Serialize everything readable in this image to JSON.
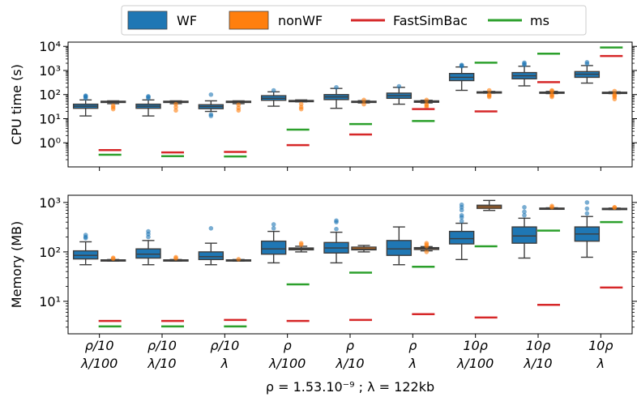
{
  "legend": [
    {
      "label": "WF",
      "kind": "box",
      "color": "#1f77b4"
    },
    {
      "label": "nonWF",
      "kind": "box",
      "color": "#ff7f0e"
    },
    {
      "label": "FastSimBac",
      "kind": "line",
      "color": "#d62728"
    },
    {
      "label": "ms",
      "kind": "line",
      "color": "#2ca02c"
    }
  ],
  "footnote": "ρ = 1.53.10⁻⁹ ;  λ = 122kb",
  "chart_data": [
    {
      "type": "box",
      "ylabel": "CPU time (s)",
      "yscale": "log",
      "ylim": [
        0.1,
        15000
      ],
      "yticks": [
        {
          "value": 1,
          "label": "10⁰"
        },
        {
          "value": 10,
          "label": "10¹"
        },
        {
          "value": 100,
          "label": "10²"
        },
        {
          "value": 1000,
          "label": "10³"
        },
        {
          "value": 10000,
          "label": "10⁴"
        }
      ],
      "categories": [
        [
          "ρ/10",
          "λ/100"
        ],
        [
          "ρ/10",
          "λ/10"
        ],
        [
          "ρ/10",
          "λ"
        ],
        [
          "ρ",
          "λ/100"
        ],
        [
          "ρ",
          "λ/10"
        ],
        [
          "ρ",
          "λ"
        ],
        [
          "10ρ",
          "λ/100"
        ],
        [
          "10ρ",
          "λ/10"
        ],
        [
          "10ρ",
          "λ"
        ]
      ],
      "series": [
        {
          "name": "WF",
          "boxes": [
            {
              "min": 13,
              "q1": 27,
              "median": 33,
              "q3": 40,
              "max": 60,
              "outliers": [
                70,
                80,
                85,
                90
              ]
            },
            {
              "min": 13,
              "q1": 27,
              "median": 33,
              "q3": 40,
              "max": 60,
              "outliers": [
                70,
                80,
                85
              ]
            },
            {
              "min": 20,
              "q1": 26,
              "median": 32,
              "q3": 38,
              "max": 55,
              "outliers": [
                13,
                15,
                100
              ]
            },
            {
              "min": 33,
              "q1": 58,
              "median": 70,
              "q3": 90,
              "max": 130,
              "outliers": [
                150
              ]
            },
            {
              "min": 27,
              "q1": 62,
              "median": 80,
              "q3": 100,
              "max": 180,
              "outliers": [
                200
              ]
            },
            {
              "min": 40,
              "q1": 70,
              "median": 90,
              "q3": 115,
              "max": 200,
              "outliers": [
                220
              ]
            },
            {
              "min": 150,
              "q1": 380,
              "median": 520,
              "q3": 750,
              "max": 1400,
              "outliers": [
                1500,
                1600,
                1700
              ]
            },
            {
              "min": 230,
              "q1": 450,
              "median": 600,
              "q3": 820,
              "max": 1500,
              "outliers": [
                1700,
                1900,
                2100
              ]
            },
            {
              "min": 300,
              "q1": 520,
              "median": 700,
              "q3": 900,
              "max": 1600,
              "outliers": [
                1900,
                2200
              ]
            }
          ]
        },
        {
          "name": "nonWF",
          "boxes": [
            {
              "min": 42,
              "q1": 47,
              "median": 50,
              "q3": 53,
              "max": 55,
              "outliers": [
                25,
                30,
                35
              ]
            },
            {
              "min": 42,
              "q1": 47,
              "median": 50,
              "q3": 53,
              "max": 55,
              "outliers": [
                22,
                30,
                40
              ]
            },
            {
              "min": 42,
              "q1": 47,
              "median": 50,
              "q3": 53,
              "max": 55,
              "outliers": [
                22,
                28,
                38
              ]
            },
            {
              "min": 50,
              "q1": 53,
              "median": 55,
              "q3": 57,
              "max": 60,
              "outliers": [
                25,
                30,
                40
              ]
            },
            {
              "min": 45,
              "q1": 48,
              "median": 50,
              "q3": 53,
              "max": 56,
              "outliers": [
                40,
                60
              ]
            },
            {
              "min": 45,
              "q1": 48,
              "median": 52,
              "q3": 55,
              "max": 58,
              "outliers": [
                30,
                35,
                40,
                60
              ]
            },
            {
              "min": 115,
              "q1": 120,
              "median": 125,
              "q3": 130,
              "max": 135,
              "outliers": [
                80,
                90,
                100,
                150
              ]
            },
            {
              "min": 110,
              "q1": 115,
              "median": 120,
              "q3": 127,
              "max": 135,
              "outliers": [
                80,
                90,
                100,
                140,
                150
              ]
            },
            {
              "min": 110,
              "q1": 115,
              "median": 120,
              "q3": 125,
              "max": 130,
              "outliers": [
                65,
                80,
                90,
                100,
                140
              ]
            }
          ]
        },
        {
          "name": "FastSimBac",
          "values": [
            0.5,
            0.4,
            0.42,
            0.8,
            2.2,
            25,
            20,
            330,
            4000
          ]
        },
        {
          "name": "ms",
          "values": [
            0.32,
            0.28,
            0.27,
            3.5,
            6,
            8,
            2100,
            5000,
            9000
          ]
        }
      ]
    },
    {
      "type": "box",
      "ylabel": "Memory (MB)",
      "yscale": "log",
      "ylim": [
        2.2,
        1400
      ],
      "yticks": [
        {
          "value": 10,
          "label": "10¹"
        },
        {
          "value": 100,
          "label": "10²"
        },
        {
          "value": 1000,
          "label": "10³"
        }
      ],
      "categories": [
        [
          "ρ/10",
          "λ/100"
        ],
        [
          "ρ/10",
          "λ/10"
        ],
        [
          "ρ/10",
          "λ"
        ],
        [
          "ρ",
          "λ/100"
        ],
        [
          "ρ",
          "λ/10"
        ],
        [
          "ρ",
          "λ"
        ],
        [
          "10ρ",
          "λ/100"
        ],
        [
          "10ρ",
          "λ/10"
        ],
        [
          "10ρ",
          "λ"
        ]
      ],
      "series": [
        {
          "name": "WF",
          "boxes": [
            {
              "min": 55,
              "q1": 72,
              "median": 85,
              "q3": 105,
              "max": 160,
              "outliers": [
                190,
                200,
                220
              ]
            },
            {
              "min": 55,
              "q1": 75,
              "median": 90,
              "q3": 115,
              "max": 170,
              "outliers": [
                200,
                230,
                260
              ]
            },
            {
              "min": 55,
              "q1": 70,
              "median": 80,
              "q3": 100,
              "max": 150,
              "outliers": [
                300
              ]
            },
            {
              "min": 60,
              "q1": 90,
              "median": 115,
              "q3": 165,
              "max": 260,
              "outliers": [
                300,
                360
              ]
            },
            {
              "min": 60,
              "q1": 95,
              "median": 120,
              "q3": 155,
              "max": 250,
              "outliers": [
                290,
                400,
                430
              ]
            },
            {
              "min": 55,
              "q1": 85,
              "median": 115,
              "q3": 170,
              "max": 320,
              "outliers": []
            },
            {
              "min": 70,
              "q1": 145,
              "median": 185,
              "q3": 260,
              "max": 380,
              "outliers": [
                420,
                500,
                550,
                700,
                800,
                900
              ]
            },
            {
              "min": 75,
              "q1": 150,
              "median": 210,
              "q3": 320,
              "max": 480,
              "outliers": [
                550,
                650,
                800
              ]
            },
            {
              "min": 78,
              "q1": 165,
              "median": 230,
              "q3": 320,
              "max": 520,
              "outliers": [
                600,
                750,
                1000
              ]
            }
          ]
        },
        {
          "name": "nonWF",
          "boxes": [
            {
              "min": 65,
              "q1": 67,
              "median": 68,
              "q3": 69,
              "max": 70,
              "outliers": [
                73,
                76
              ]
            },
            {
              "min": 65,
              "q1": 67,
              "median": 68,
              "q3": 69,
              "max": 70,
              "outliers": [
                74,
                78
              ]
            },
            {
              "min": 65,
              "q1": 67,
              "median": 68,
              "q3": 69,
              "max": 70,
              "outliers": [
                71
              ]
            },
            {
              "min": 100,
              "q1": 110,
              "median": 115,
              "q3": 120,
              "max": 130,
              "outliers": [
                140,
                150
              ]
            },
            {
              "min": 100,
              "q1": 110,
              "median": 115,
              "q3": 125,
              "max": 135,
              "outliers": []
            },
            {
              "min": 105,
              "q1": 112,
              "median": 118,
              "q3": 122,
              "max": 128,
              "outliers": [
                100,
                130,
                140,
                150
              ]
            },
            {
              "min": 690,
              "q1": 760,
              "median": 820,
              "q3": 880,
              "max": 1100,
              "outliers": []
            },
            {
              "min": 730,
              "q1": 745,
              "median": 760,
              "q3": 770,
              "max": 780,
              "outliers": [
                800,
                850
              ]
            },
            {
              "min": 720,
              "q1": 740,
              "median": 750,
              "q3": 760,
              "max": 770,
              "outliers": [
                790,
                800
              ]
            }
          ]
        },
        {
          "name": "FastSimBac",
          "values": [
            4,
            4,
            4.2,
            4,
            4.2,
            5.5,
            4.7,
            8.5,
            19
          ]
        },
        {
          "name": "ms",
          "values": [
            3.1,
            3.1,
            3.1,
            22,
            38,
            50,
            130,
            270,
            400
          ]
        }
      ]
    }
  ]
}
